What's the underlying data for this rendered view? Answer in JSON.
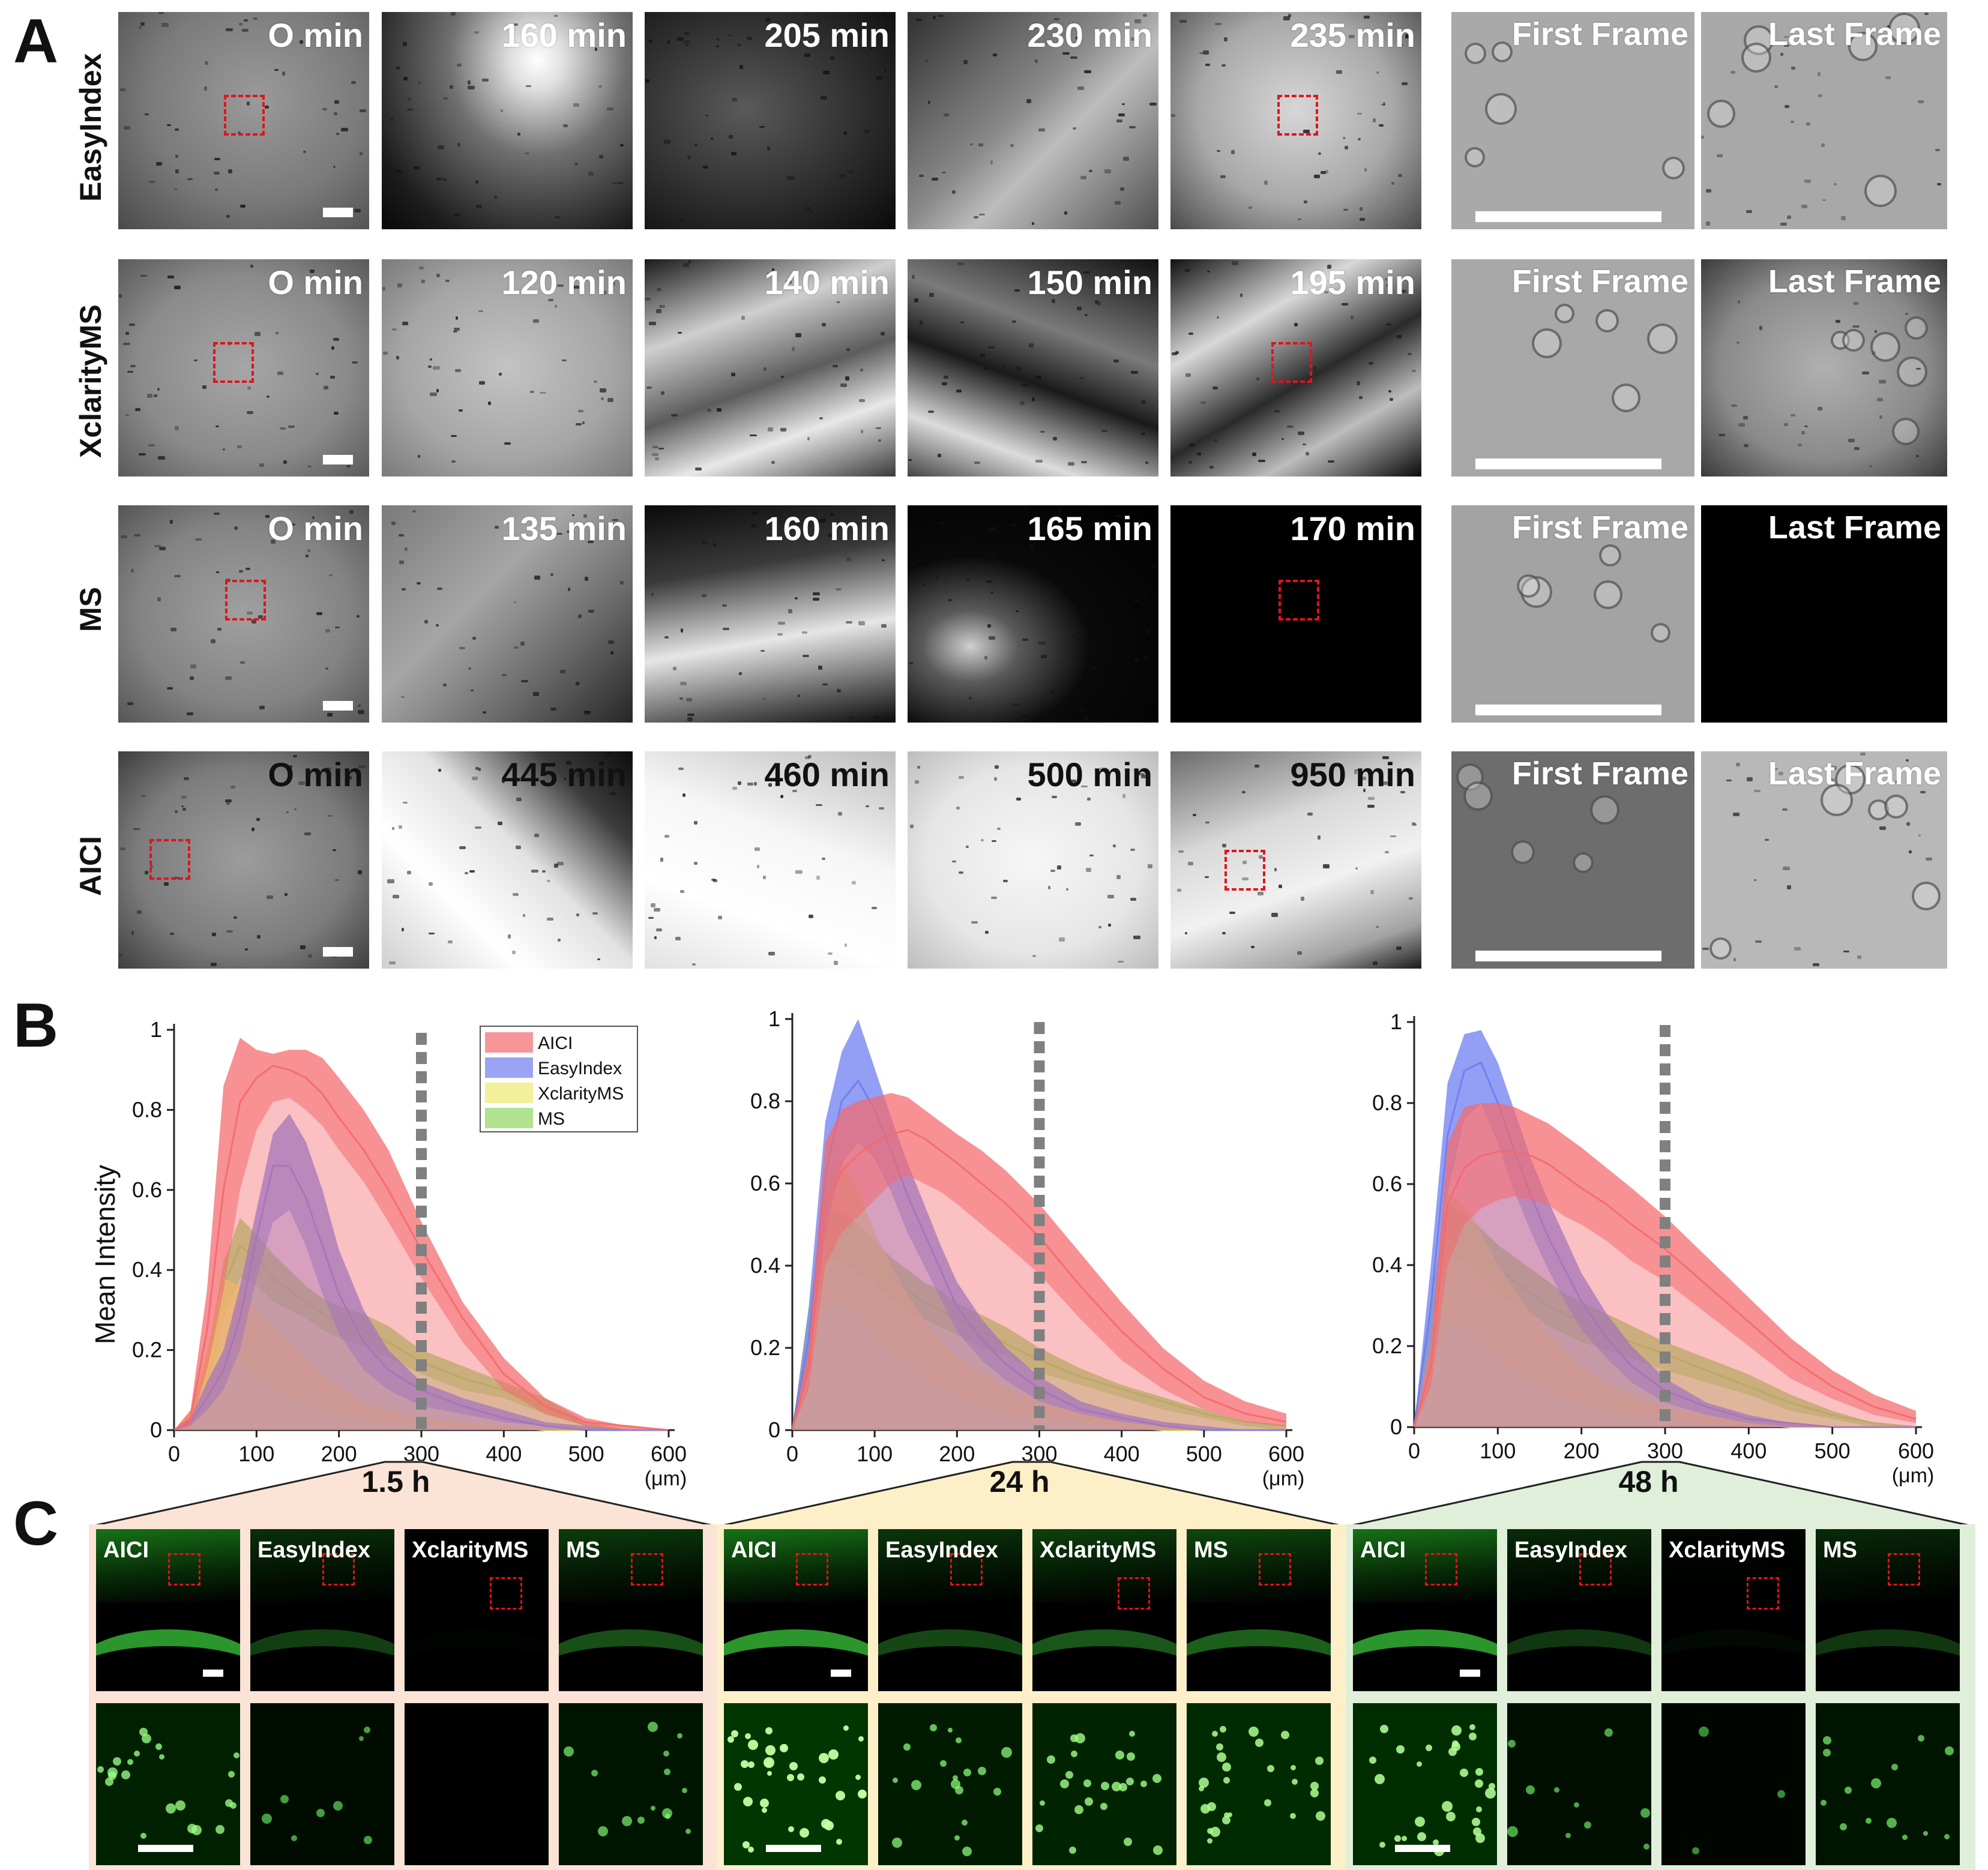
{
  "panels": {
    "a": "A",
    "b": "B",
    "c": "C"
  },
  "panel_a": {
    "rows": [
      {
        "label": "EasyIndex",
        "times": [
          "O min",
          "160 min",
          "205 min",
          "230 min",
          "235 min"
        ]
      },
      {
        "label": "XclarityMS",
        "times": [
          "O min",
          "120 min",
          "140 min",
          "150 min",
          "195 min"
        ]
      },
      {
        "label": "MS",
        "times": [
          "O min",
          "135 min",
          "160 min",
          "165 min",
          "170 min"
        ]
      },
      {
        "label": "AICI",
        "times": [
          "O min",
          "445 min",
          "460 min",
          "500 min",
          "950 min"
        ]
      }
    ],
    "first_frame": "First Frame",
    "last_frame": "Last Frame"
  },
  "panel_b": {
    "ylabel": "Mean Intensity",
    "unit": "(μm)",
    "legend": [
      "AICI",
      "EasyIndex",
      "XclarityMS",
      "MS"
    ],
    "colors": {
      "AICI": "#f4696e",
      "EasyIndex": "#6d7df0",
      "XclarityMS": "#ecea70",
      "MS": "#8fd65f",
      "dash": "#808080"
    }
  },
  "panel_c": {
    "groups": [
      {
        "time": "1.5 h",
        "tint": "#fbe3d6"
      },
      {
        "time": "24 h",
        "tint": "#fdf0c9"
      },
      {
        "time": "48 h",
        "tint": "#dfefd9"
      }
    ],
    "labels": [
      "AICI",
      "EasyIndex",
      "XclarityMS",
      "MS"
    ]
  },
  "chart_data": [
    {
      "type": "area",
      "title": "",
      "xlabel": "(μm)",
      "ylabel": "Mean Intensity",
      "xlim": [
        0,
        600
      ],
      "ylim": [
        0,
        1
      ],
      "xticks": [
        0,
        100,
        200,
        300,
        400,
        500,
        600
      ],
      "yticks": [
        0,
        0.2,
        0.4,
        0.6,
        0.8,
        1
      ],
      "vline_x": 300,
      "legend_position": "top-right",
      "x": [
        0,
        20,
        40,
        60,
        80,
        100,
        120,
        140,
        160,
        180,
        200,
        230,
        260,
        300,
        350,
        400,
        450,
        500,
        550,
        600
      ],
      "series": [
        {
          "name": "AICI",
          "upper": [
            0,
            0.05,
            0.35,
            0.86,
            0.98,
            0.95,
            0.94,
            0.95,
            0.95,
            0.93,
            0.88,
            0.8,
            0.7,
            0.52,
            0.32,
            0.18,
            0.08,
            0.03,
            0.01,
            0
          ],
          "mean": [
            0,
            0.03,
            0.25,
            0.6,
            0.82,
            0.88,
            0.91,
            0.9,
            0.88,
            0.84,
            0.78,
            0.7,
            0.6,
            0.45,
            0.28,
            0.14,
            0.06,
            0.02,
            0.01,
            0
          ],
          "lower": [
            0,
            0.01,
            0.15,
            0.35,
            0.6,
            0.75,
            0.82,
            0.83,
            0.8,
            0.76,
            0.7,
            0.62,
            0.52,
            0.38,
            0.22,
            0.1,
            0.04,
            0.01,
            0,
            0
          ]
        },
        {
          "name": "EasyIndex",
          "upper": [
            0,
            0.03,
            0.12,
            0.2,
            0.36,
            0.55,
            0.74,
            0.79,
            0.72,
            0.6,
            0.45,
            0.3,
            0.2,
            0.12,
            0.08,
            0.05,
            0.02,
            0.01,
            0,
            0
          ],
          "mean": [
            0,
            0.02,
            0.08,
            0.15,
            0.28,
            0.48,
            0.66,
            0.66,
            0.58,
            0.46,
            0.34,
            0.22,
            0.15,
            0.1,
            0.06,
            0.03,
            0.01,
            0,
            0,
            0
          ],
          "lower": [
            0,
            0.01,
            0.05,
            0.1,
            0.2,
            0.38,
            0.52,
            0.55,
            0.46,
            0.34,
            0.24,
            0.15,
            0.1,
            0.06,
            0.04,
            0.02,
            0.01,
            0,
            0,
            0
          ]
        },
        {
          "name": "XclarityMS",
          "upper": [
            0,
            0.05,
            0.2,
            0.38,
            0.36,
            0.3,
            0.26,
            0.22,
            0.18,
            0.14,
            0.11,
            0.07,
            0.05,
            0.03,
            0.02,
            0.01,
            0,
            0,
            0,
            0
          ],
          "mean": [
            0,
            0.03,
            0.14,
            0.3,
            0.28,
            0.22,
            0.18,
            0.15,
            0.12,
            0.09,
            0.07,
            0.05,
            0.03,
            0.02,
            0.01,
            0.01,
            0,
            0,
            0,
            0
          ],
          "lower": [
            0,
            0.01,
            0.08,
            0.2,
            0.18,
            0.14,
            0.11,
            0.09,
            0.07,
            0.05,
            0.04,
            0.03,
            0.02,
            0.01,
            0.01,
            0,
            0,
            0,
            0,
            0
          ]
        },
        {
          "name": "MS",
          "upper": [
            0,
            0.04,
            0.18,
            0.42,
            0.53,
            0.49,
            0.44,
            0.4,
            0.36,
            0.33,
            0.31,
            0.29,
            0.26,
            0.2,
            0.16,
            0.12,
            0.08,
            0.02,
            0,
            0
          ],
          "mean": [
            0,
            0.03,
            0.14,
            0.36,
            0.46,
            0.43,
            0.38,
            0.35,
            0.32,
            0.29,
            0.27,
            0.25,
            0.22,
            0.17,
            0.13,
            0.1,
            0.06,
            0.01,
            0,
            0
          ],
          "lower": [
            0,
            0.02,
            0.1,
            0.28,
            0.38,
            0.36,
            0.32,
            0.3,
            0.28,
            0.25,
            0.23,
            0.21,
            0.18,
            0.14,
            0.1,
            0.08,
            0.04,
            0.01,
            0,
            0
          ]
        }
      ]
    },
    {
      "type": "area",
      "title": "",
      "xlabel": "(μm)",
      "ylabel": "",
      "xlim": [
        0,
        600
      ],
      "ylim": [
        0,
        1
      ],
      "xticks": [
        0,
        100,
        200,
        300,
        400,
        500,
        600
      ],
      "yticks": [
        0,
        0.2,
        0.4,
        0.6,
        0.8,
        1
      ],
      "vline_x": 300,
      "x": [
        0,
        20,
        40,
        60,
        80,
        100,
        120,
        140,
        160,
        180,
        200,
        230,
        260,
        300,
        350,
        400,
        450,
        500,
        550,
        600
      ],
      "series": [
        {
          "name": "AICI",
          "upper": [
            0,
            0.2,
            0.7,
            0.78,
            0.8,
            0.81,
            0.82,
            0.81,
            0.78,
            0.75,
            0.72,
            0.68,
            0.63,
            0.55,
            0.43,
            0.31,
            0.2,
            0.12,
            0.07,
            0.04
          ],
          "mean": [
            0,
            0.15,
            0.55,
            0.63,
            0.67,
            0.7,
            0.72,
            0.73,
            0.71,
            0.68,
            0.65,
            0.6,
            0.55,
            0.47,
            0.35,
            0.24,
            0.15,
            0.08,
            0.04,
            0.02
          ],
          "lower": [
            0,
            0.1,
            0.4,
            0.48,
            0.52,
            0.56,
            0.6,
            0.62,
            0.6,
            0.58,
            0.55,
            0.5,
            0.45,
            0.38,
            0.27,
            0.17,
            0.1,
            0.05,
            0.02,
            0.01
          ]
        },
        {
          "name": "EasyIndex",
          "upper": [
            0,
            0.3,
            0.75,
            0.92,
            1.0,
            0.88,
            0.76,
            0.65,
            0.55,
            0.45,
            0.36,
            0.27,
            0.2,
            0.13,
            0.07,
            0.04,
            0.02,
            0.01,
            0,
            0
          ],
          "mean": [
            0,
            0.22,
            0.62,
            0.8,
            0.85,
            0.78,
            0.68,
            0.57,
            0.48,
            0.39,
            0.3,
            0.22,
            0.16,
            0.1,
            0.05,
            0.03,
            0.01,
            0,
            0,
            0
          ],
          "lower": [
            0,
            0.15,
            0.48,
            0.65,
            0.7,
            0.66,
            0.58,
            0.48,
            0.4,
            0.32,
            0.24,
            0.17,
            0.12,
            0.07,
            0.04,
            0.02,
            0.01,
            0,
            0,
            0
          ]
        },
        {
          "name": "XclarityMS",
          "upper": [
            0,
            0.3,
            0.62,
            0.66,
            0.58,
            0.48,
            0.4,
            0.33,
            0.27,
            0.22,
            0.18,
            0.14,
            0.1,
            0.07,
            0.04,
            0.02,
            0.01,
            0,
            0,
            0
          ],
          "mean": [
            0,
            0.22,
            0.45,
            0.48,
            0.42,
            0.35,
            0.29,
            0.24,
            0.2,
            0.16,
            0.13,
            0.1,
            0.07,
            0.05,
            0.03,
            0.01,
            0,
            0,
            0,
            0
          ],
          "lower": [
            0,
            0.12,
            0.3,
            0.32,
            0.28,
            0.23,
            0.19,
            0.16,
            0.13,
            0.1,
            0.08,
            0.06,
            0.04,
            0.03,
            0.02,
            0.01,
            0,
            0,
            0,
            0
          ]
        },
        {
          "name": "MS",
          "upper": [
            0,
            0.3,
            0.55,
            0.53,
            0.5,
            0.46,
            0.42,
            0.39,
            0.36,
            0.34,
            0.31,
            0.28,
            0.25,
            0.2,
            0.15,
            0.11,
            0.08,
            0.05,
            0.02,
            0.01
          ],
          "mean": [
            0,
            0.25,
            0.49,
            0.47,
            0.44,
            0.41,
            0.37,
            0.34,
            0.31,
            0.29,
            0.27,
            0.24,
            0.21,
            0.17,
            0.13,
            0.1,
            0.07,
            0.04,
            0.02,
            0.01
          ],
          "lower": [
            0,
            0.2,
            0.42,
            0.41,
            0.38,
            0.35,
            0.32,
            0.29,
            0.27,
            0.25,
            0.23,
            0.2,
            0.18,
            0.14,
            0.11,
            0.08,
            0.05,
            0.03,
            0.01,
            0
          ]
        }
      ]
    },
    {
      "type": "area",
      "title": "",
      "xlabel": "(μm)",
      "ylabel": "",
      "xlim": [
        0,
        600
      ],
      "ylim": [
        0,
        1
      ],
      "xticks": [
        0,
        100,
        200,
        300,
        400,
        500,
        600
      ],
      "yticks": [
        0,
        0.2,
        0.4,
        0.6,
        0.8,
        1
      ],
      "vline_x": 300,
      "x": [
        0,
        20,
        40,
        60,
        80,
        100,
        120,
        140,
        160,
        180,
        200,
        230,
        260,
        300,
        350,
        400,
        450,
        500,
        550,
        600
      ],
      "series": [
        {
          "name": "AICI",
          "upper": [
            0,
            0.2,
            0.7,
            0.79,
            0.8,
            0.8,
            0.79,
            0.77,
            0.75,
            0.72,
            0.69,
            0.64,
            0.59,
            0.52,
            0.42,
            0.32,
            0.22,
            0.14,
            0.08,
            0.04
          ],
          "mean": [
            0,
            0.15,
            0.55,
            0.64,
            0.67,
            0.68,
            0.68,
            0.67,
            0.65,
            0.62,
            0.59,
            0.55,
            0.5,
            0.44,
            0.35,
            0.26,
            0.17,
            0.1,
            0.05,
            0.02
          ],
          "lower": [
            0,
            0.1,
            0.4,
            0.5,
            0.54,
            0.56,
            0.57,
            0.56,
            0.55,
            0.52,
            0.5,
            0.46,
            0.41,
            0.36,
            0.28,
            0.2,
            0.12,
            0.07,
            0.03,
            0.01
          ]
        },
        {
          "name": "EasyIndex",
          "upper": [
            0,
            0.4,
            0.85,
            0.97,
            0.98,
            0.9,
            0.78,
            0.66,
            0.56,
            0.47,
            0.38,
            0.28,
            0.2,
            0.12,
            0.06,
            0.03,
            0.01,
            0,
            0,
            0
          ],
          "mean": [
            0,
            0.3,
            0.72,
            0.88,
            0.9,
            0.8,
            0.68,
            0.57,
            0.47,
            0.39,
            0.31,
            0.22,
            0.15,
            0.09,
            0.05,
            0.02,
            0.01,
            0,
            0,
            0
          ],
          "lower": [
            0,
            0.2,
            0.58,
            0.76,
            0.8,
            0.7,
            0.58,
            0.48,
            0.39,
            0.31,
            0.24,
            0.17,
            0.11,
            0.06,
            0.03,
            0.01,
            0,
            0,
            0,
            0
          ]
        },
        {
          "name": "XclarityMS",
          "upper": [
            0,
            0.3,
            0.58,
            0.55,
            0.48,
            0.4,
            0.34,
            0.28,
            0.23,
            0.19,
            0.15,
            0.11,
            0.08,
            0.05,
            0.03,
            0.01,
            0,
            0,
            0,
            0
          ],
          "mean": [
            0,
            0.22,
            0.42,
            0.39,
            0.34,
            0.28,
            0.23,
            0.19,
            0.15,
            0.12,
            0.1,
            0.07,
            0.05,
            0.03,
            0.02,
            0.01,
            0,
            0,
            0,
            0
          ],
          "lower": [
            0,
            0.12,
            0.26,
            0.24,
            0.21,
            0.17,
            0.14,
            0.11,
            0.09,
            0.07,
            0.06,
            0.04,
            0.03,
            0.02,
            0.01,
            0,
            0,
            0,
            0,
            0
          ]
        },
        {
          "name": "MS",
          "upper": [
            0,
            0.32,
            0.55,
            0.53,
            0.49,
            0.45,
            0.42,
            0.39,
            0.36,
            0.33,
            0.31,
            0.28,
            0.25,
            0.21,
            0.17,
            0.13,
            0.08,
            0.04,
            0.01,
            0
          ],
          "mean": [
            0,
            0.26,
            0.49,
            0.47,
            0.43,
            0.39,
            0.36,
            0.33,
            0.3,
            0.28,
            0.26,
            0.23,
            0.21,
            0.18,
            0.14,
            0.1,
            0.06,
            0.03,
            0.01,
            0
          ],
          "lower": [
            0,
            0.2,
            0.43,
            0.41,
            0.37,
            0.33,
            0.3,
            0.28,
            0.25,
            0.23,
            0.21,
            0.19,
            0.17,
            0.14,
            0.11,
            0.08,
            0.04,
            0.02,
            0,
            0
          ]
        }
      ]
    }
  ]
}
